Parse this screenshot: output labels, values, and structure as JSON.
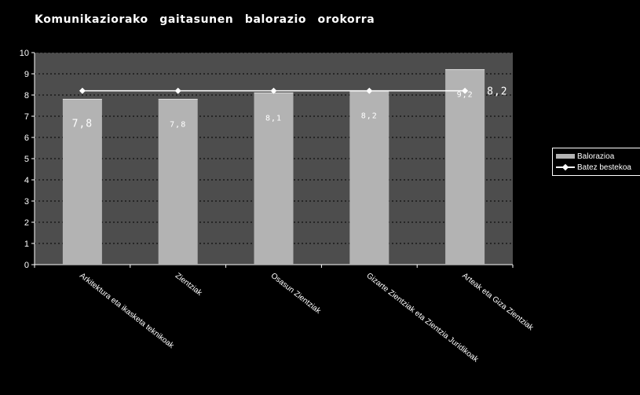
{
  "chart_data": {
    "type": "bar",
    "title": "Komunikaziorako gaitasunen balorazio orokorra",
    "xlabel": "",
    "ylabel": "",
    "categories": [
      "Arkitektura eta ikasketa teknikoak",
      "Zientziak",
      "Osasun Zientziak",
      "Gizarte Zientziak eta Zientzia Juridikoak",
      "Arteak eta Giza Zientziak"
    ],
    "series": [
      {
        "name": "Balorazioa",
        "type": "bar",
        "values": [
          7.8,
          7.8,
          8.1,
          8.2,
          9.2
        ],
        "labels": [
          "7,8",
          "7,8",
          "8,1",
          "8,2",
          "9,2"
        ],
        "color": "#b3b3b3"
      },
      {
        "name": "Batez bestekoa",
        "type": "line",
        "values": [
          8.2,
          8.2,
          8.2,
          8.2,
          8.2
        ],
        "end_label": "8,2",
        "color": "#ffffff"
      }
    ],
    "ylim": [
      0,
      10
    ],
    "yticks": [
      "0",
      "1",
      "2",
      "3",
      "4",
      "5",
      "6",
      "7",
      "8",
      "9",
      "10"
    ],
    "grid": "horizontal dotted",
    "legend": "right",
    "colors": {
      "background": "#000000",
      "plot_area": "#4d4d4d",
      "bar": "#b3b3b3",
      "line": "#ffffff"
    }
  }
}
